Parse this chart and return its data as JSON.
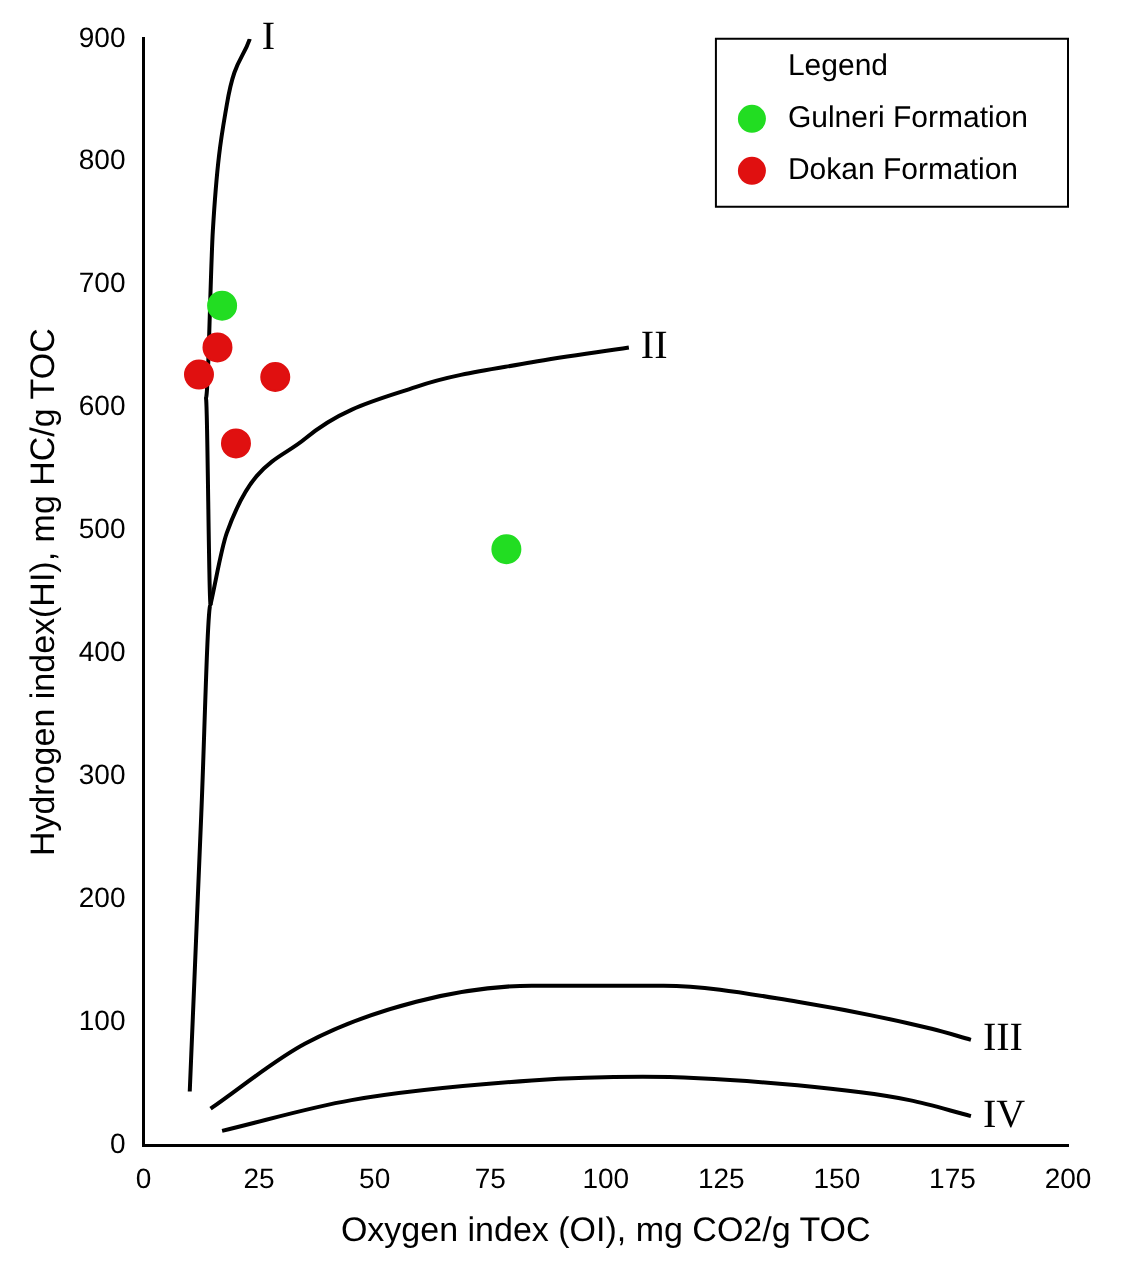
{
  "chart_data": {
    "type": "scatter",
    "xlabel": "Oxygen index (OI), mg CO2/g TOC",
    "ylabel": "Hydrogen index(HI), mg HC/g TOC",
    "legend_title": "Legend",
    "legend": "top right",
    "grid": false,
    "marker": "circle",
    "xlim": [
      0,
      200
    ],
    "ylim": [
      0,
      900
    ],
    "xticks": [
      0,
      25,
      50,
      75,
      100,
      125,
      150,
      175,
      200
    ],
    "yticks": [
      0,
      100,
      200,
      300,
      400,
      500,
      600,
      700,
      800,
      900
    ],
    "series": [
      {
        "name": "Gulneri Formation",
        "color": "#22dd22",
        "x": [
          17,
          78.5
        ],
        "values": [
          683,
          485
        ]
      },
      {
        "name": "Dokan Formation",
        "color": "#e01010",
        "x": [
          12,
          16,
          28.5,
          20
        ],
        "values": [
          627,
          649,
          625,
          571
        ]
      },
      {
        "name": "I",
        "type": "line",
        "color": "#000000",
        "marker": "none",
        "x": [
          10,
          11,
          12.5,
          14.5,
          13.5,
          15,
          18,
          23
        ],
        "values": [
          44,
          134,
          270,
          440,
          608,
          744,
          846,
          900
        ]
      },
      {
        "name": "II",
        "type": "line",
        "color": "#000000",
        "marker": "none",
        "x": [
          14.5,
          18,
          35,
          59,
          84,
          105
        ],
        "values": [
          440,
          498,
          575,
          617,
          637,
          649
        ]
      },
      {
        "name": "III",
        "type": "line",
        "color": "#000000",
        "marker": "none",
        "x": [
          14.5,
          35,
          59,
          84,
          112.5,
          141.5,
          170.5,
          179
        ],
        "values": [
          30,
          83,
          117,
          130,
          130,
          117,
          95,
          86
        ]
      },
      {
        "name": "IV",
        "type": "line",
        "color": "#000000",
        "marker": "none",
        "x": [
          17,
          45,
          84,
          108,
          141.5,
          165.7,
          179
        ],
        "values": [
          12,
          37,
          53,
          56,
          49,
          37,
          24
        ]
      }
    ]
  }
}
